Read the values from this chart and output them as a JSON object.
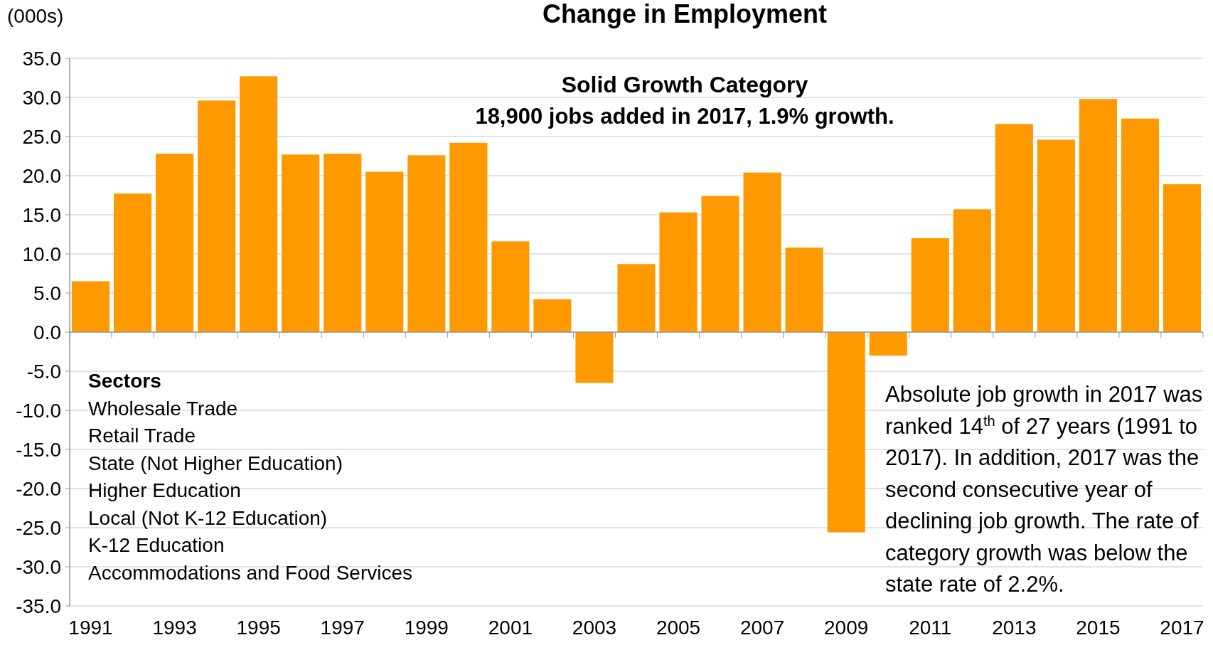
{
  "chart_data": {
    "type": "bar",
    "title": "Change in Employment",
    "ylabel": "(000s)",
    "categories": [
      "1991",
      null,
      "1993",
      null,
      "1995",
      null,
      "1997",
      null,
      "1999",
      null,
      "2001",
      null,
      "2003",
      null,
      "2005",
      null,
      "2007",
      null,
      "2009",
      null,
      "2011",
      null,
      "2013",
      null,
      "2015",
      null,
      "2017"
    ],
    "values": [
      6.5,
      17.7,
      22.8,
      29.6,
      32.7,
      22.7,
      22.8,
      20.5,
      22.6,
      24.2,
      11.6,
      4.2,
      -6.5,
      8.7,
      15.3,
      17.4,
      20.4,
      10.8,
      -25.6,
      -3.0,
      12.0,
      15.7,
      26.6,
      24.6,
      29.8,
      27.3,
      18.9
    ],
    "color": "#ff9900",
    "ylim": [
      -35,
      35
    ],
    "yticks": [
      {
        "value": -35,
        "label": "-35.0"
      },
      {
        "value": -30,
        "label": "-30.0"
      },
      {
        "value": -25,
        "label": "-25.0"
      },
      {
        "value": -20,
        "label": "-20.0"
      },
      {
        "value": -15,
        "label": "-15.0"
      },
      {
        "value": -10,
        "label": "-10.0"
      },
      {
        "value": -5,
        "label": "-5.0"
      },
      {
        "value": 0,
        "label": "0.0"
      },
      {
        "value": 5,
        "label": "5.0"
      },
      {
        "value": 10,
        "label": "10.0"
      },
      {
        "value": 15,
        "label": "15.0"
      },
      {
        "value": 20,
        "label": "20.0"
      },
      {
        "value": 25,
        "label": "25.0"
      },
      {
        "value": 30,
        "label": "30.0"
      },
      {
        "value": 35,
        "label": "35.0"
      }
    ],
    "grid": "y",
    "annotations": [
      "Solid Growth Category",
      "18,900 jobs added in 2017, 1.9% growth.",
      "Sectors",
      "Wholesale Trade",
      "Retail Trade",
      "State (Not Higher Education)",
      "Higher Education",
      "Local (Not K-12 Education)",
      "K-12 Education",
      "Accommodations and Food Services",
      "Absolute job growth in 2017 was",
      "ranked 14$^{th}$ of 27 years (1991 to",
      "2017). In addition, 2017 was the",
      "second consecutive year of",
      "declining job growth. The rate of",
      "category growth was below the",
      "state rate of 2.2%."
    ]
  }
}
